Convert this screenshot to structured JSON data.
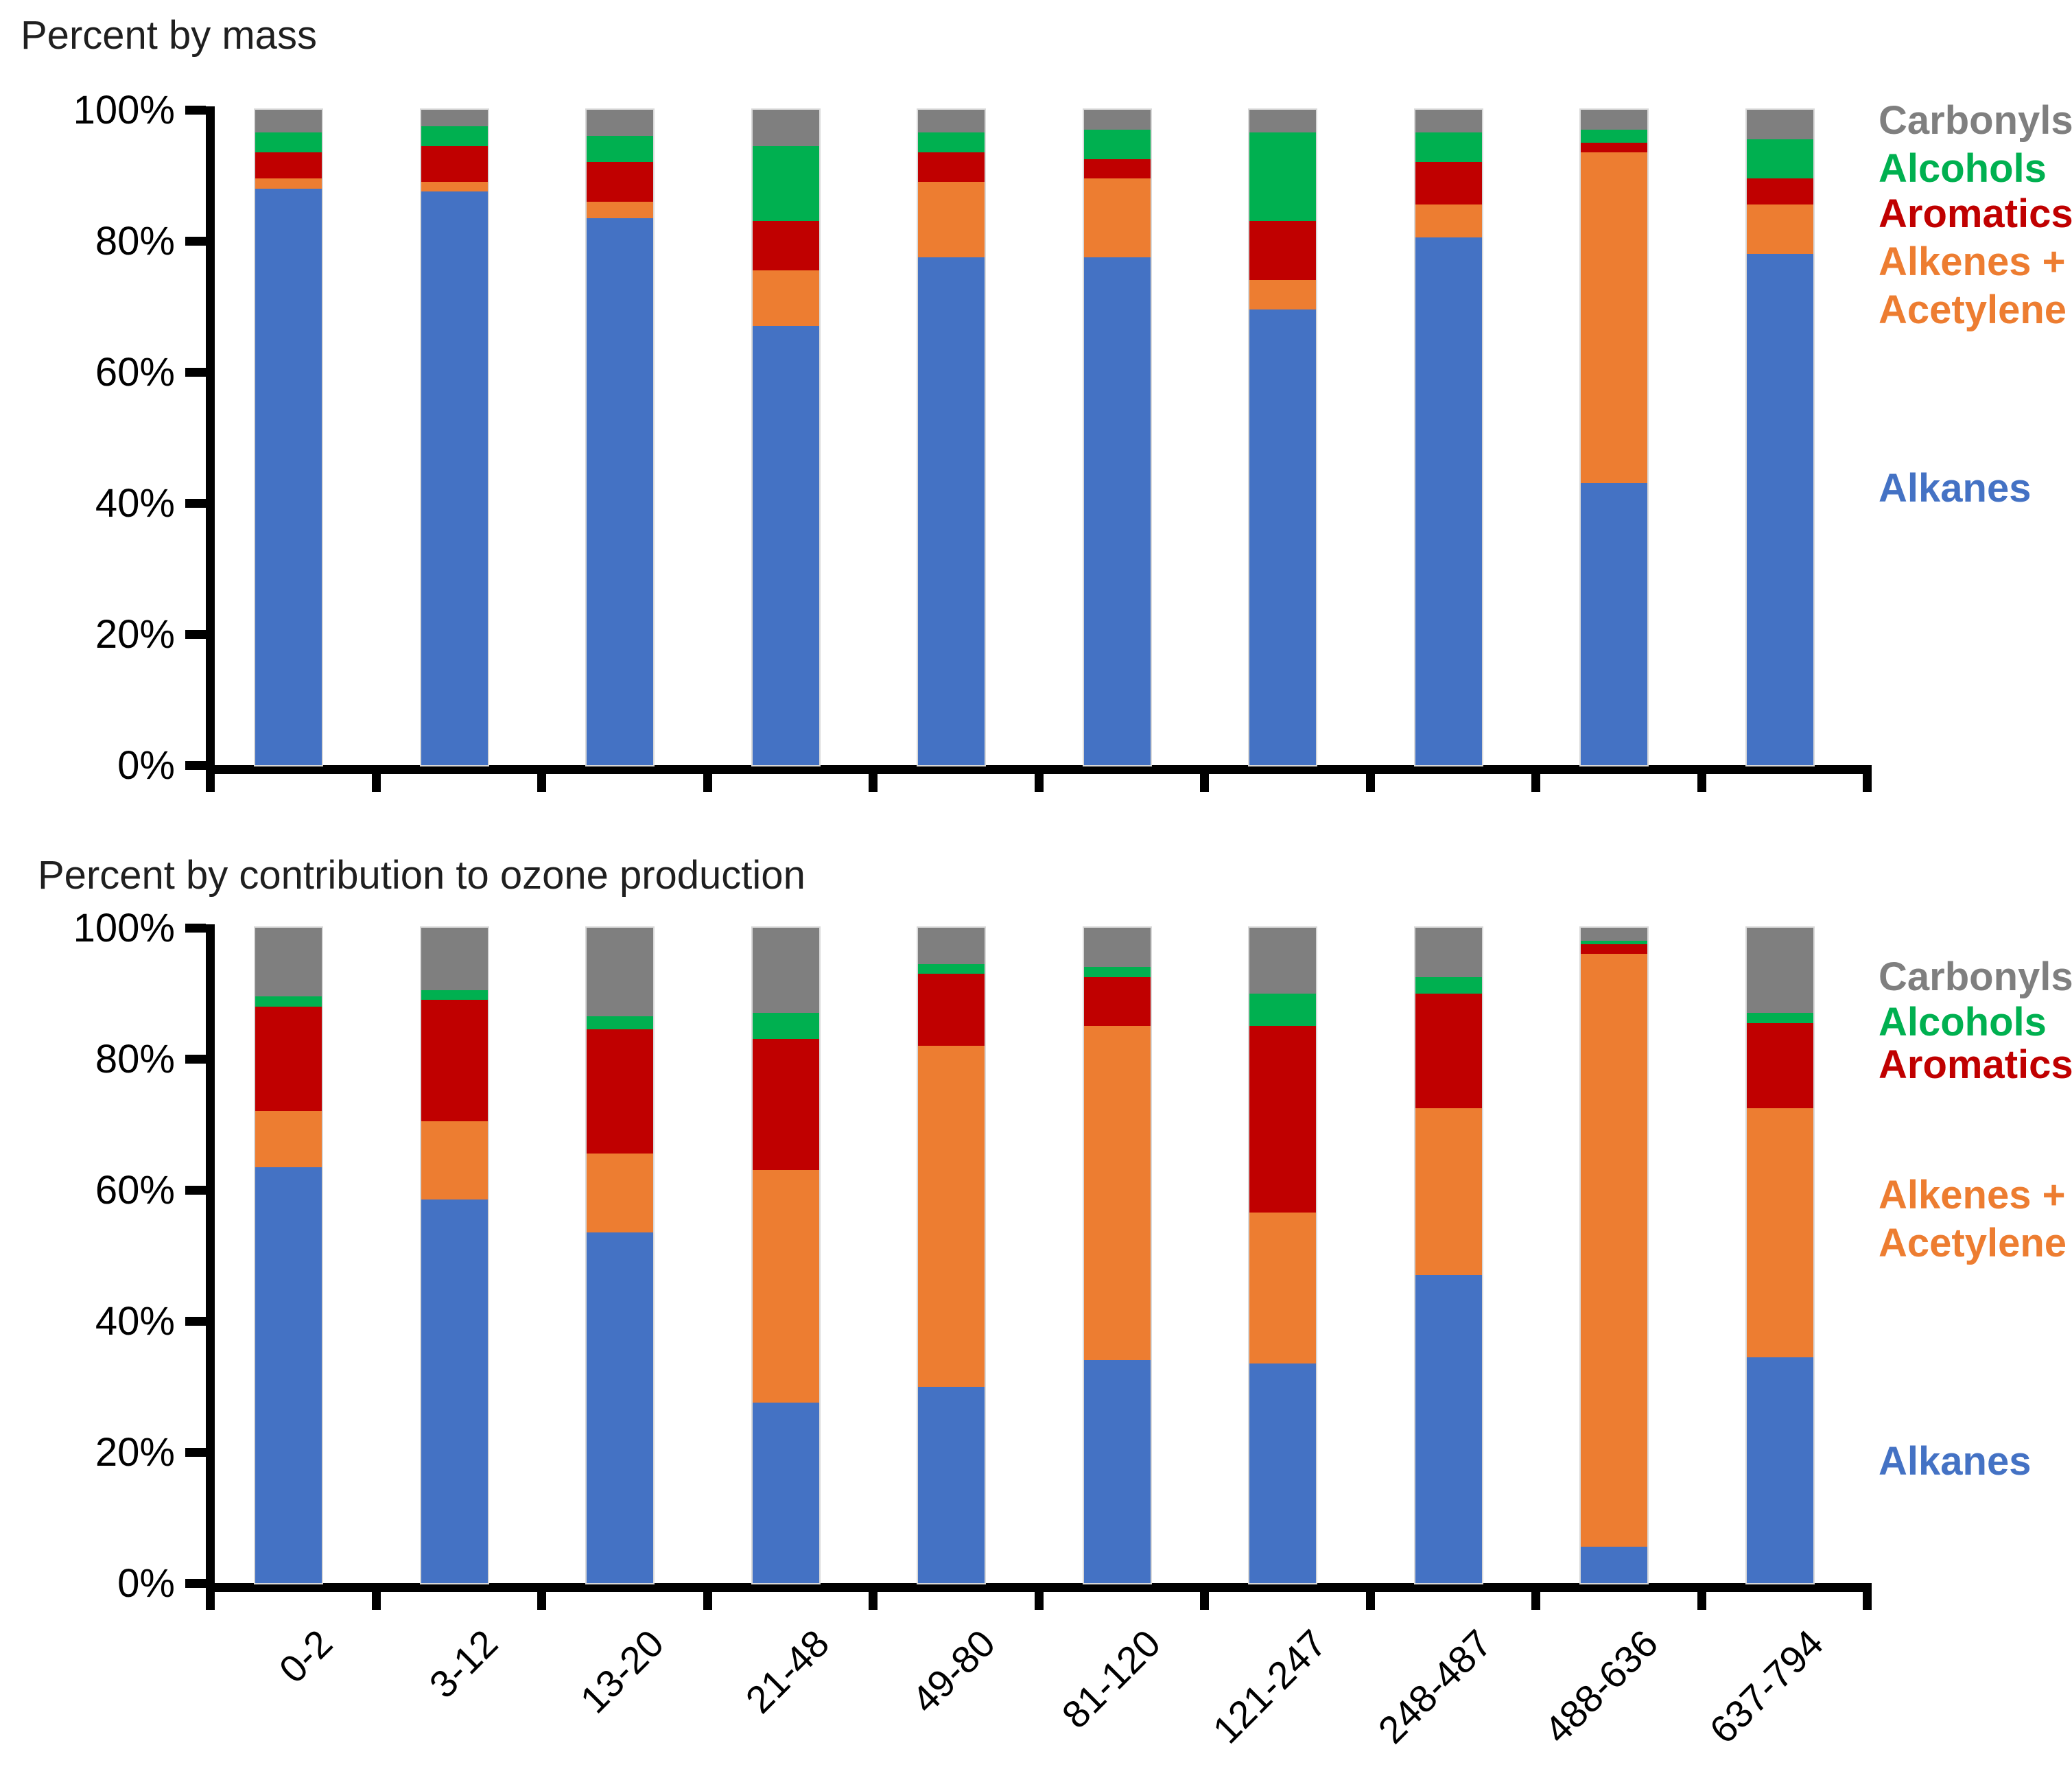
{
  "colors": {
    "alkanes": "#4472C4",
    "alkenes_acetylene": "#ED7D31",
    "aromatics": "#C00000",
    "alcohols": "#00B050",
    "carbonyls": "#7F7F7F",
    "axis": "#000000",
    "bar_outline": "#d9d9d9"
  },
  "chart_data": [
    {
      "type": "bar",
      "stacked": true,
      "title": "Percent by mass",
      "ylim": [
        0,
        100
      ],
      "grid": false,
      "legend_position": "right",
      "y_tick_labels": [
        "100%",
        "80%",
        "60%",
        "40%",
        "20%",
        "0%"
      ],
      "show_x_labels": false,
      "categories": [
        "0-2",
        "3-12",
        "13-20",
        "21-48",
        "49-80",
        "81-120",
        "121-247",
        "248-487",
        "488-636",
        "637-794"
      ],
      "series": [
        {
          "name": "Alkanes",
          "color_key": "alkanes",
          "values": [
            88,
            87.5,
            83.5,
            67,
            77.5,
            77.5,
            69.5,
            80.5,
            43,
            78
          ]
        },
        {
          "name": "Alkenes + Acetylene",
          "color_key": "alkenes_acetylene",
          "values": [
            1.5,
            1.5,
            2.5,
            8.5,
            11.5,
            12,
            4.5,
            5,
            50.5,
            7.5
          ]
        },
        {
          "name": "Aromatics",
          "color_key": "aromatics",
          "values": [
            4,
            5.5,
            6,
            7.5,
            4.5,
            3,
            9,
            6.5,
            1.5,
            4
          ]
        },
        {
          "name": "Alcohols",
          "color_key": "alcohols",
          "values": [
            3,
            3,
            4,
            11.5,
            3,
            4.5,
            13.5,
            4.5,
            2,
            6
          ]
        },
        {
          "name": "Carbonyls",
          "color_key": "carbonyls",
          "values": [
            3.5,
            2.5,
            4,
            5.5,
            3.5,
            3,
            3.5,
            3.5,
            3,
            4.5
          ]
        }
      ],
      "legend_labels": [
        {
          "text": "Carbonyls",
          "color_key": "carbonyls"
        },
        {
          "text": "Alcohols",
          "color_key": "alcohols"
        },
        {
          "text": "Aromatics",
          "color_key": "aromatics"
        },
        {
          "text": "Alkenes +",
          "color_key": "alkenes_acetylene"
        },
        {
          "text": "Acetylene",
          "color_key": "alkenes_acetylene"
        },
        {
          "text": "Alkanes",
          "color_key": "alkanes"
        }
      ]
    },
    {
      "type": "bar",
      "stacked": true,
      "title": "Percent by contribution to ozone production",
      "ylim": [
        0,
        100
      ],
      "grid": false,
      "legend_position": "right",
      "y_tick_labels": [
        "100%",
        "80%",
        "60%",
        "40%",
        "20%",
        "0%"
      ],
      "show_x_labels": true,
      "categories": [
        "0-2",
        "3-12",
        "13-20",
        "21-48",
        "49-80",
        "81-120",
        "121-247",
        "248-487",
        "488-636",
        "637-794"
      ],
      "series": [
        {
          "name": "Alkanes",
          "color_key": "alkanes",
          "values": [
            63.5,
            58.5,
            53.5,
            27.5,
            30,
            34,
            33.5,
            47,
            5.5,
            34.5
          ]
        },
        {
          "name": "Alkenes + Acetylene",
          "color_key": "alkenes_acetylene",
          "values": [
            8.5,
            12,
            12,
            35.5,
            52,
            51,
            23,
            25.5,
            90.5,
            38
          ]
        },
        {
          "name": "Aromatics",
          "color_key": "aromatics",
          "values": [
            16,
            18.5,
            19,
            20,
            11,
            7.5,
            28.5,
            17.5,
            1.5,
            13
          ]
        },
        {
          "name": "Alcohols",
          "color_key": "alcohols",
          "values": [
            1.5,
            1.5,
            2,
            4,
            1.5,
            1.5,
            5,
            2.5,
            0.5,
            1.5
          ]
        },
        {
          "name": "Carbonyls",
          "color_key": "carbonyls",
          "values": [
            10.5,
            9.5,
            13.5,
            13,
            5.5,
            6,
            10,
            7.5,
            2,
            13
          ]
        }
      ],
      "legend_labels": [
        {
          "text": "Carbonyls",
          "color_key": "carbonyls"
        },
        {
          "text": "Alcohols",
          "color_key": "alcohols"
        },
        {
          "text": "Aromatics",
          "color_key": "aromatics"
        },
        {
          "text": "Alkenes +",
          "color_key": "alkenes_acetylene"
        },
        {
          "text": "Acetylene",
          "color_key": "alkenes_acetylene"
        },
        {
          "text": "Alkanes",
          "color_key": "alkanes"
        }
      ]
    }
  ]
}
